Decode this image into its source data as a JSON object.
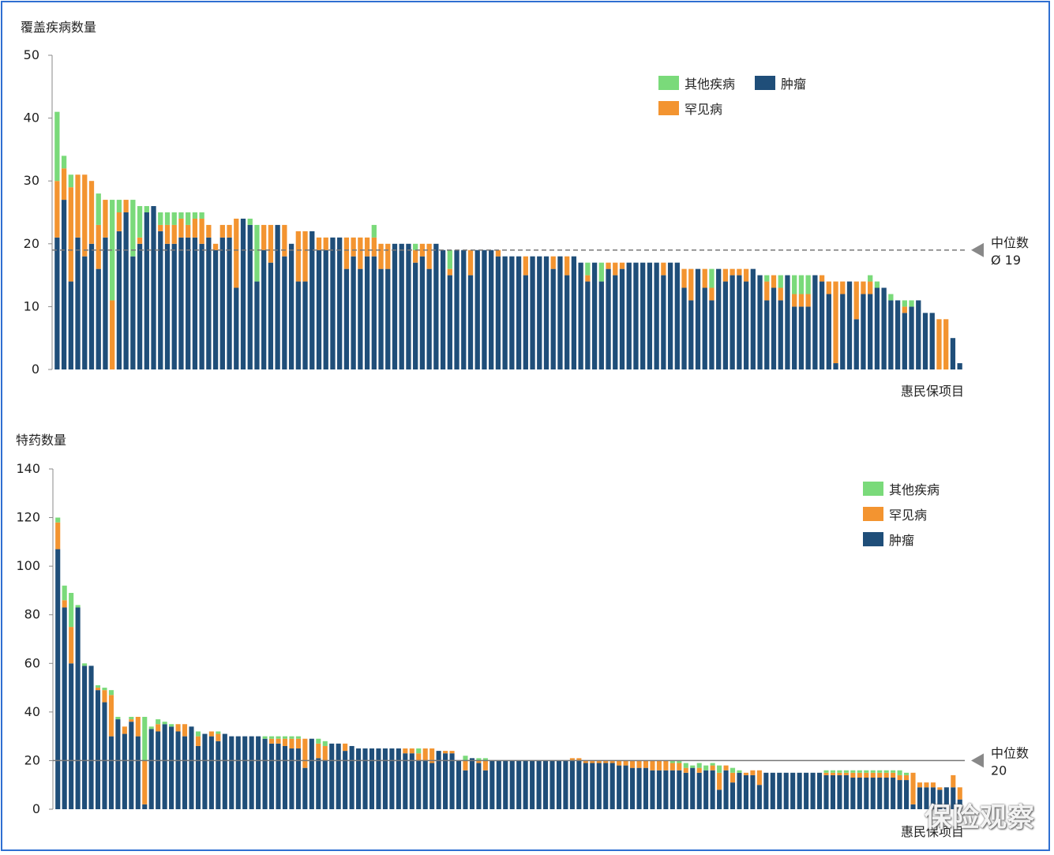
{
  "colors": {
    "tumor": "#1f4e79",
    "rare": "#f39430",
    "other": "#7ada7a",
    "median_line": "#777777",
    "frame": "#2f6fd1"
  },
  "watermark": "保险观察",
  "chart_data": [
    {
      "type": "bar",
      "stacked": true,
      "title": "覆盖疾病数量",
      "xlabel": "惠民保项目",
      "ylim": [
        0,
        50
      ],
      "yticks": [
        "0",
        "10",
        "20",
        "30",
        "40",
        "50"
      ],
      "legend": {
        "position": "top-right",
        "items": [
          {
            "name": "其他疾病",
            "color": "#7ada7a"
          },
          {
            "name": "肿瘤",
            "color": "#1f4e79"
          },
          {
            "name": "罕见病",
            "color": "#f39430"
          }
        ]
      },
      "median": {
        "label": "中位数",
        "value_label": "Ø 19",
        "value": 19
      },
      "series": [
        {
          "name": "肿瘤",
          "values": [
            21,
            27,
            14,
            21,
            18,
            20,
            16,
            21,
            0,
            22,
            25,
            18,
            20,
            25,
            26,
            22,
            20,
            20,
            21,
            21,
            21,
            20,
            21,
            19,
            21,
            21,
            13,
            24,
            23,
            14,
            19,
            17,
            23,
            18,
            20,
            14,
            14,
            22,
            19,
            19,
            21,
            21,
            16,
            18,
            16,
            18,
            18,
            16,
            16,
            20,
            20,
            20,
            17,
            18,
            16,
            20,
            19,
            15,
            19,
            19,
            15,
            19,
            19,
            19,
            18,
            18,
            18,
            18,
            15,
            18,
            18,
            18,
            16,
            18,
            15,
            18,
            17,
            14,
            17,
            14,
            16,
            15,
            16,
            17,
            17,
            17,
            17,
            17,
            15,
            17,
            17,
            13,
            11,
            16,
            13,
            11,
            16,
            14,
            15,
            15,
            14,
            16,
            15,
            11,
            13,
            11,
            15,
            10,
            10,
            10,
            15,
            14,
            12,
            1,
            12,
            14,
            8,
            12,
            12,
            13,
            13,
            11,
            11,
            9,
            10,
            11,
            9,
            9,
            0,
            0,
            5,
            1
          ]
        },
        {
          "name": "罕见病",
          "values": [
            9,
            5,
            15,
            10,
            13,
            10,
            7,
            6,
            11,
            3,
            2,
            0,
            1,
            0,
            0,
            1,
            3,
            3,
            3,
            2,
            3,
            4,
            2,
            1,
            2,
            2,
            11,
            0,
            0,
            0,
            4,
            6,
            0,
            5,
            0,
            8,
            8,
            0,
            2,
            2,
            0,
            0,
            5,
            3,
            5,
            3,
            3,
            4,
            4,
            0,
            0,
            0,
            2,
            2,
            4,
            0,
            0,
            1,
            0,
            0,
            4,
            0,
            0,
            0,
            1,
            0,
            0,
            0,
            3,
            0,
            0,
            0,
            2,
            0,
            3,
            0,
            0,
            1,
            0,
            0,
            1,
            2,
            1,
            0,
            0,
            0,
            0,
            0,
            2,
            0,
            0,
            3,
            5,
            0,
            3,
            2,
            0,
            2,
            1,
            1,
            2,
            0,
            0,
            3,
            2,
            2,
            0,
            2,
            2,
            2,
            0,
            1,
            2,
            13,
            2,
            0,
            6,
            2,
            2,
            0,
            0,
            0,
            0,
            1,
            0,
            0,
            0,
            0,
            8,
            8,
            0,
            0
          ]
        },
        {
          "name": "其他疾病",
          "values": [
            11,
            2,
            2,
            0,
            0,
            0,
            5,
            0,
            16,
            2,
            0,
            9,
            5,
            1,
            0,
            2,
            2,
            2,
            1,
            2,
            1,
            1,
            0,
            0,
            0,
            0,
            0,
            0,
            1,
            9,
            0,
            0,
            0,
            0,
            0,
            0,
            0,
            0,
            0,
            0,
            0,
            0,
            0,
            0,
            0,
            0,
            2,
            0,
            0,
            0,
            0,
            0,
            1,
            0,
            0,
            0,
            0,
            3,
            0,
            0,
            0,
            0,
            0,
            0,
            0,
            0,
            0,
            0,
            0,
            0,
            0,
            0,
            0,
            0,
            0,
            0,
            0,
            2,
            0,
            3,
            0,
            0,
            0,
            0,
            0,
            0,
            0,
            0,
            0,
            0,
            0,
            0,
            0,
            0,
            0,
            3,
            0,
            0,
            0,
            0,
            0,
            0,
            0,
            1,
            0,
            2,
            0,
            3,
            3,
            3,
            0,
            0,
            0,
            0,
            0,
            0,
            0,
            0,
            1,
            1,
            0,
            1,
            0,
            1,
            1,
            0,
            0,
            0,
            0,
            0,
            0,
            0
          ]
        }
      ]
    },
    {
      "type": "bar",
      "stacked": true,
      "title": "特药数量",
      "xlabel": "惠民保项目",
      "ylim": [
        0,
        140
      ],
      "yticks": [
        "0",
        "20",
        "40",
        "60",
        "80",
        "100",
        "120",
        "140"
      ],
      "legend": {
        "position": "top-right",
        "items": [
          {
            "name": "其他疾病",
            "color": "#7ada7a"
          },
          {
            "name": "罕见病",
            "color": "#f39430"
          },
          {
            "name": "肿瘤",
            "color": "#1f4e79"
          }
        ]
      },
      "median": {
        "label": "中位数",
        "value_label": "20",
        "value": 20
      },
      "series": [
        {
          "name": "肿瘤",
          "values": [
            107,
            83,
            60,
            83,
            59,
            59,
            49,
            44,
            30,
            37,
            31,
            36,
            30,
            2,
            33,
            32,
            35,
            34,
            32,
            30,
            34,
            26,
            31,
            30,
            28,
            31,
            30,
            30,
            30,
            30,
            30,
            29,
            27,
            27,
            26,
            25,
            25,
            17,
            29,
            21,
            20,
            27,
            27,
            24,
            26,
            25,
            25,
            25,
            25,
            25,
            25,
            25,
            23,
            23,
            20,
            20,
            19,
            24,
            23,
            23,
            20,
            16,
            21,
            19,
            16,
            20,
            20,
            20,
            20,
            20,
            20,
            20,
            20,
            20,
            20,
            20,
            20,
            20,
            20,
            19,
            19,
            19,
            19,
            19,
            18,
            18,
            17,
            17,
            17,
            16,
            16,
            16,
            16,
            16,
            15,
            17,
            15,
            16,
            16,
            8,
            16,
            11,
            15,
            14,
            14,
            10,
            15,
            15,
            15,
            15,
            15,
            15,
            15,
            15,
            15,
            14,
            14,
            14,
            14,
            13,
            13,
            13,
            13,
            13,
            13,
            13,
            12,
            12,
            2,
            9,
            9,
            9,
            8,
            9,
            9,
            4
          ]
        },
        {
          "name": "罕见病",
          "values": [
            11,
            3,
            15,
            0,
            0,
            0,
            1,
            5,
            17,
            0,
            3,
            1,
            8,
            18,
            0,
            3,
            0,
            0,
            3,
            5,
            0,
            4,
            0,
            2,
            3,
            0,
            0,
            0,
            0,
            0,
            0,
            0,
            2,
            2,
            3,
            4,
            4,
            12,
            0,
            6,
            6,
            0,
            0,
            3,
            0,
            0,
            0,
            0,
            0,
            0,
            0,
            0,
            2,
            2,
            3,
            5,
            6,
            0,
            1,
            1,
            0,
            4,
            0,
            1,
            4,
            0,
            0,
            0,
            0,
            0,
            0,
            0,
            0,
            0,
            0,
            0,
            0,
            1,
            1,
            1,
            1,
            1,
            1,
            1,
            2,
            2,
            3,
            3,
            3,
            4,
            4,
            4,
            3,
            3,
            2,
            0,
            2,
            0,
            2,
            7,
            2,
            4,
            0,
            1,
            2,
            6,
            0,
            0,
            0,
            0,
            0,
            0,
            0,
            0,
            0,
            1,
            1,
            1,
            1,
            2,
            2,
            2,
            2,
            2,
            2,
            2,
            2,
            2,
            13,
            2,
            2,
            2,
            1,
            0,
            5,
            5
          ]
        },
        {
          "name": "其他疾病",
          "values": [
            2,
            6,
            14,
            1,
            1,
            0,
            1,
            1,
            2,
            1,
            0,
            1,
            0,
            18,
            1,
            2,
            1,
            1,
            0,
            0,
            0,
            2,
            0,
            0,
            1,
            0,
            0,
            0,
            0,
            0,
            0,
            1,
            1,
            1,
            1,
            1,
            1,
            0,
            0,
            2,
            2,
            0,
            0,
            0,
            0,
            0,
            0,
            0,
            0,
            0,
            0,
            0,
            0,
            0,
            2,
            0,
            0,
            0,
            0,
            0,
            0,
            2,
            0,
            1,
            1,
            0,
            0,
            0,
            0,
            0,
            0,
            0,
            0,
            0,
            0,
            0,
            0,
            0,
            0,
            0,
            0,
            0,
            0,
            0,
            0,
            0,
            0,
            0,
            0,
            0,
            0,
            0,
            1,
            1,
            2,
            1,
            2,
            2,
            1,
            3,
            0,
            2,
            1,
            0,
            0,
            0,
            0,
            0,
            0,
            0,
            0,
            0,
            0,
            0,
            0,
            1,
            1,
            1,
            1,
            1,
            1,
            1,
            1,
            1,
            1,
            1,
            2,
            1,
            0,
            0,
            0,
            0,
            0,
            0,
            0,
            0
          ]
        }
      ]
    }
  ]
}
